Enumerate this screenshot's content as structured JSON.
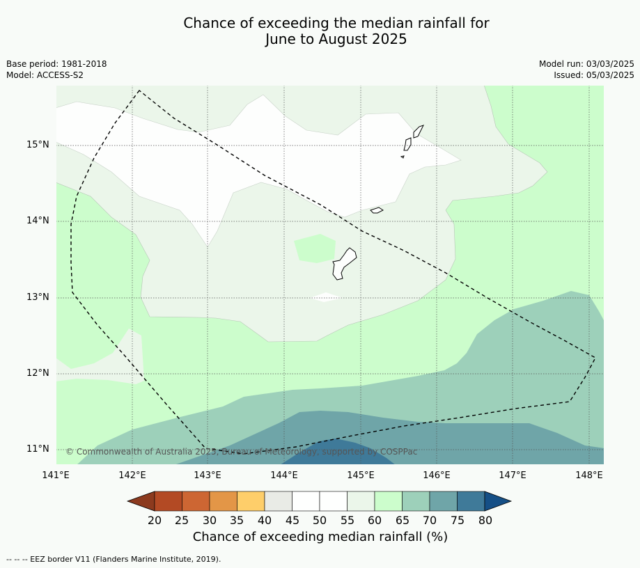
{
  "title_line1": "Chance of exceeding the median rainfall for",
  "title_line2": "June to August 2025",
  "base_period": "Base period: 1981-2018",
  "model": "Model: ACCESS-S2",
  "model_run": "Model run: 03/03/2025",
  "issued": "Issued: 05/03/2025",
  "lat_labels": [
    "15°N",
    "14°N",
    "13°N",
    "12°N",
    "11°N"
  ],
  "lon_labels": [
    "141°E",
    "142°E",
    "143°E",
    "144°E",
    "145°E",
    "146°E",
    "147°E",
    "148°E"
  ],
  "copyright": "© Commonwealth of Australia 2025, Bureau of Meteorology, supported by COSPPac",
  "colorbar": {
    "title": "Chance of exceeding median rainfall (%)",
    "ticks": [
      "20",
      "25",
      "30",
      "35",
      "40",
      "45",
      "50",
      "55",
      "60",
      "65",
      "70",
      "75",
      "80"
    ],
    "colors": [
      "#8c3a1e",
      "#b34a24",
      "#cd6633",
      "#e39647",
      "#fece6a",
      "#e9ebe6",
      "#fefffe",
      "#fefffe",
      "#ebf6ea",
      "#ccfdcc",
      "#9dd0ba",
      "#6fa5a8",
      "#3f7a99",
      "#154f86"
    ]
  },
  "footnote": "--  --  -- EEZ border V11 (Flanders Marine Institute, 2019)."
}
